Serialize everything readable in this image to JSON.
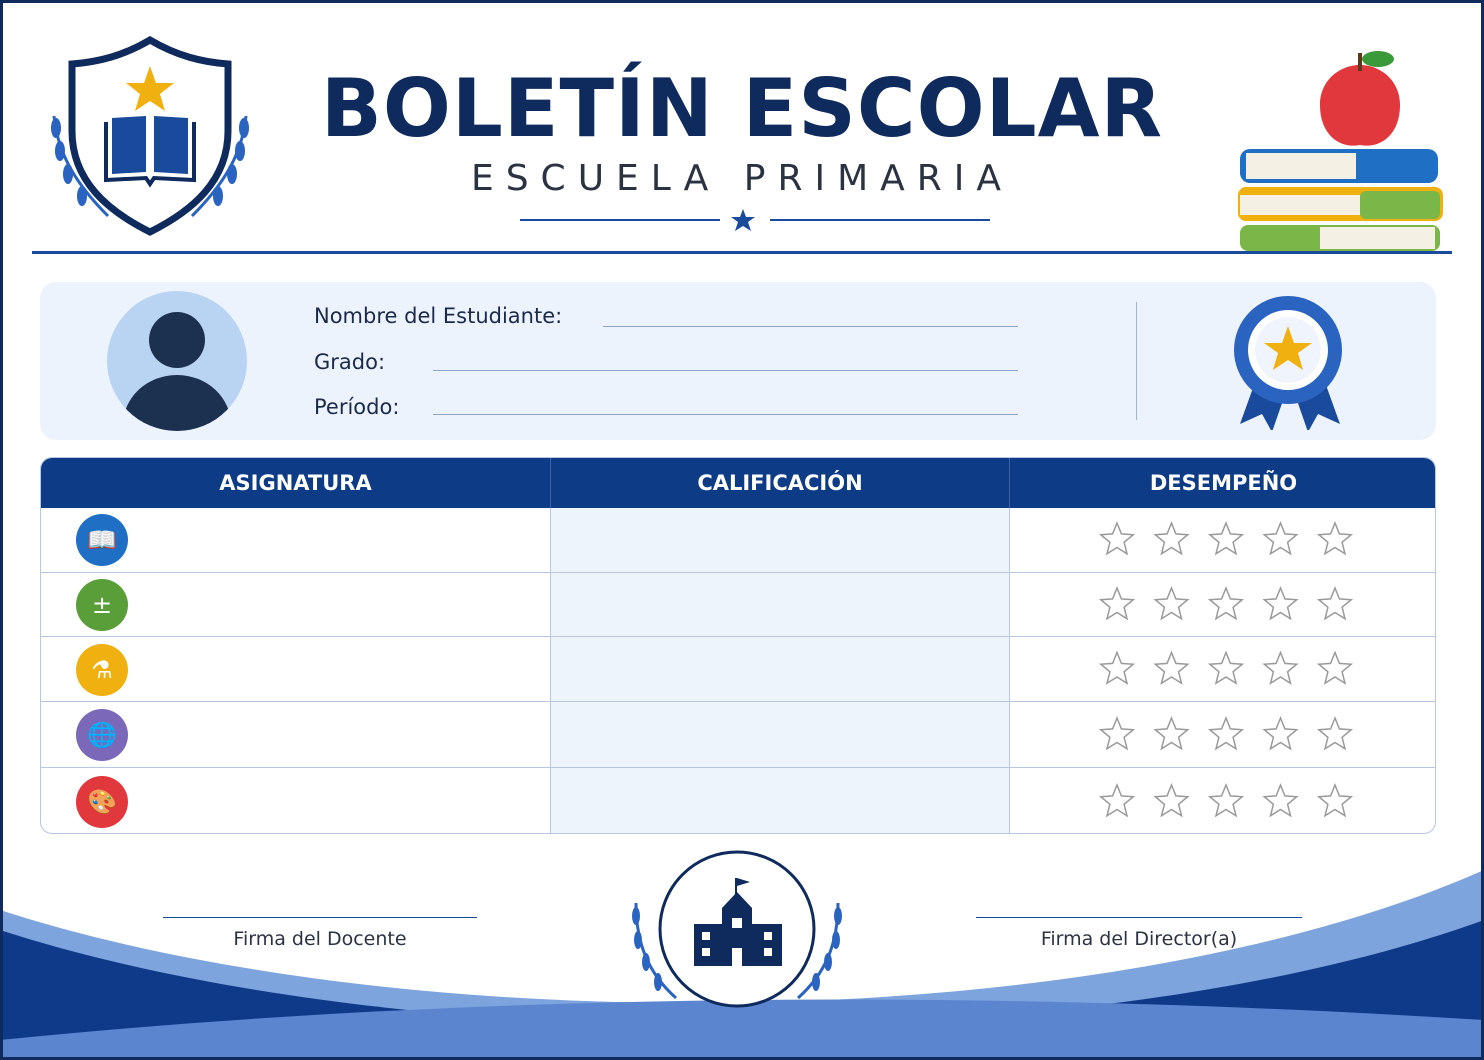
{
  "header": {
    "title": "BOLETÍN ESCOLAR",
    "subtitle": "ESCUELA PRIMARIA"
  },
  "student": {
    "name_label": "Nombre del Estudiante:",
    "name_value": "",
    "grade_label": "Grado:",
    "grade_value": "",
    "period_label": "Período:",
    "period_value": ""
  },
  "table": {
    "headers": [
      "ASIGNATURA",
      "CALIFICACIÓN",
      "DESEMPEÑO"
    ],
    "rows": [
      {
        "icon": "book-icon",
        "color": "#1f6fc4",
        "subject": "",
        "grade": "",
        "stars": 0
      },
      {
        "icon": "math-operations-icon",
        "color": "#5a9e3a",
        "subject": "",
        "grade": "",
        "stars": 0
      },
      {
        "icon": "flask-icon",
        "color": "#f0b010",
        "subject": "",
        "grade": "",
        "stars": 0
      },
      {
        "icon": "globe-icon",
        "color": "#7b68b8",
        "subject": "",
        "grade": "",
        "stars": 0
      },
      {
        "icon": "palette-icon",
        "color": "#e0383c",
        "subject": "",
        "grade": "",
        "stars": 0
      }
    ],
    "max_stars": 5
  },
  "footer": {
    "teacher_signature": "Firma del Docente",
    "director_signature": "Firma del Director(a)"
  },
  "colors": {
    "primary": "#0f2a5c",
    "accent": "#0d3b86",
    "gold": "#f0b010"
  }
}
